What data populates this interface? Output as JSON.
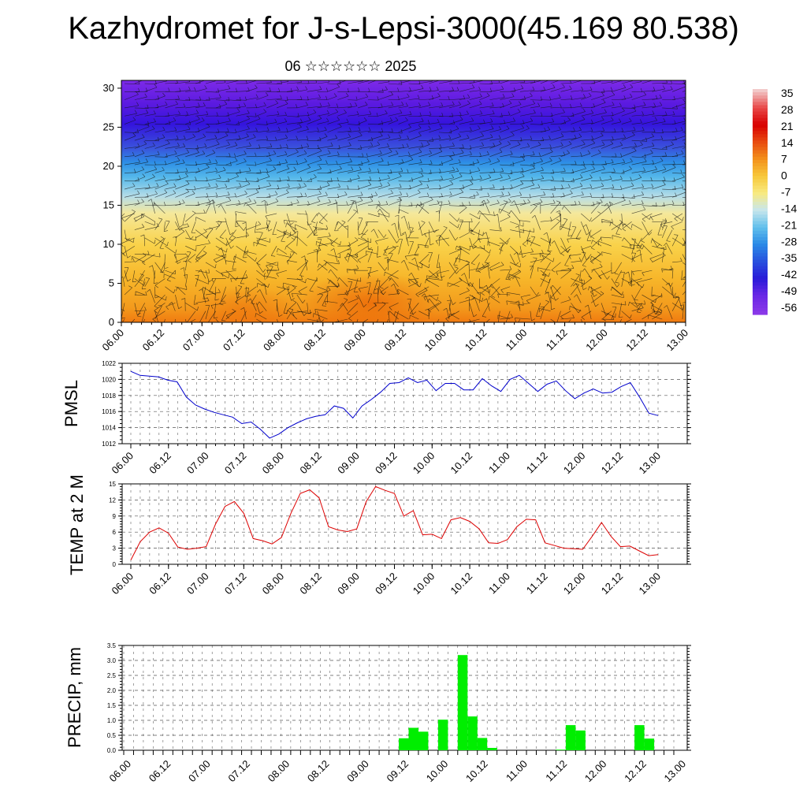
{
  "page": {
    "title": "Kazhydromet for J-s-Lepsi-3000(45.169 80.538)",
    "subtitle": "06 ☆☆☆☆☆☆ 2025"
  },
  "chart_data": [
    {
      "id": "cross-section",
      "type": "heatmap",
      "title": "Kazhydromet for J-s-Lepsi-3000(45.169 80.538)",
      "subtitle": "06 ☆☆☆☆☆☆ 2025",
      "x_ticks": [
        "06.00",
        "06.12",
        "07.00",
        "07.12",
        "08.00",
        "08.12",
        "09.00",
        "09.12",
        "10.00",
        "10.12",
        "11.00",
        "11.12",
        "12.00",
        "12.12",
        "13.00"
      ],
      "y_ticks": [
        0,
        5,
        10,
        15,
        20,
        25,
        30
      ],
      "ylim": [
        0,
        31
      ],
      "overlay": "wind barbs",
      "colorbar": {
        "labels": [
          "35",
          "28",
          "21",
          "14",
          "7",
          "0",
          "-7",
          "-14",
          "-21",
          "-28",
          "-35",
          "-42",
          "-49",
          "-56"
        ],
        "range": [
          -60,
          38
        ]
      }
    },
    {
      "id": "pmsl",
      "type": "line",
      "ylabel": "PMSL",
      "ylim": [
        1012,
        1022
      ],
      "y_ticks": [
        1012,
        1014,
        1016,
        1018,
        1020,
        1022
      ],
      "x_ticks": [
        "06.00",
        "06.12",
        "07.00",
        "07.12",
        "08.00",
        "08.12",
        "09.00",
        "09.12",
        "10.00",
        "10.12",
        "11.00",
        "11.12",
        "12.00",
        "12.12",
        "13.00"
      ],
      "color": "#0000cc",
      "values": [
        1021.0,
        1020.5,
        1020.4,
        1020.3,
        1019.9,
        1019.7,
        1017.8,
        1016.8,
        1016.3,
        1015.9,
        1015.6,
        1015.3,
        1014.5,
        1014.7,
        1013.8,
        1012.7,
        1013.2,
        1014.0,
        1014.6,
        1015.1,
        1015.4,
        1015.6,
        1016.7,
        1016.4,
        1015.2,
        1016.7,
        1017.5,
        1018.4,
        1019.5,
        1019.6,
        1020.2,
        1019.6,
        1019.9,
        1018.6,
        1019.5,
        1019.5,
        1018.7,
        1018.7,
        1020.1,
        1019.2,
        1018.5,
        1020.0,
        1020.5,
        1019.5,
        1018.5,
        1019.4,
        1019.8,
        1018.6,
        1017.6,
        1018.3,
        1018.8,
        1018.3,
        1018.4,
        1019.1,
        1019.6,
        1017.8,
        1015.8,
        1015.5
      ]
    },
    {
      "id": "temp",
      "type": "line",
      "ylabel": "TEMP at 2 M",
      "ylim": [
        0,
        15
      ],
      "y_ticks": [
        0,
        3,
        6,
        9,
        12,
        15
      ],
      "x_ticks": [
        "06.00",
        "06.12",
        "07.00",
        "07.12",
        "08.00",
        "08.12",
        "09.00",
        "09.12",
        "10.00",
        "10.12",
        "11.00",
        "11.12",
        "12.00",
        "12.12",
        "13.00"
      ],
      "color": "#dd0000",
      "values": [
        0.8,
        4.2,
        6.0,
        6.8,
        5.8,
        3.2,
        2.8,
        3.0,
        3.3,
        7.5,
        10.8,
        11.7,
        9.5,
        4.8,
        4.4,
        3.8,
        5.0,
        9.5,
        13.2,
        13.9,
        12.4,
        7.0,
        6.4,
        6.1,
        6.6,
        11.7,
        14.5,
        13.8,
        13.2,
        9.0,
        10.0,
        5.5,
        5.6,
        4.8,
        8.3,
        8.7,
        8.0,
        6.6,
        4.0,
        3.9,
        4.6,
        7.0,
        8.4,
        8.3,
        4.0,
        3.5,
        3.0,
        2.9,
        2.8,
        5.2,
        7.8,
        5.2,
        3.3,
        3.4,
        2.5,
        1.6,
        1.8
      ]
    },
    {
      "id": "precip",
      "type": "bar",
      "ylabel": "PRECIP, mm",
      "ylim": [
        0,
        3.5
      ],
      "y_ticks": [
        "0.0",
        "0.5",
        "1.0",
        "1.5",
        "2.0",
        "2.5",
        "3.0",
        "3.5"
      ],
      "x_ticks": [
        "06.00",
        "06.12",
        "07.00",
        "07.12",
        "08.00",
        "08.12",
        "09.00",
        "09.12",
        "10.00",
        "10.12",
        "11.00",
        "11.12",
        "12.00",
        "12.12",
        "13.00"
      ],
      "color": "#00ee00",
      "start_slot": 28,
      "values": [
        0.4,
        0.75,
        0.62,
        0,
        1.02,
        0,
        3.18,
        1.13,
        0.41,
        0.08,
        0,
        0,
        0,
        0,
        0,
        0,
        0.02,
        0.84,
        0.66,
        0,
        0,
        0,
        0,
        0,
        0.84,
        0.39
      ]
    }
  ]
}
